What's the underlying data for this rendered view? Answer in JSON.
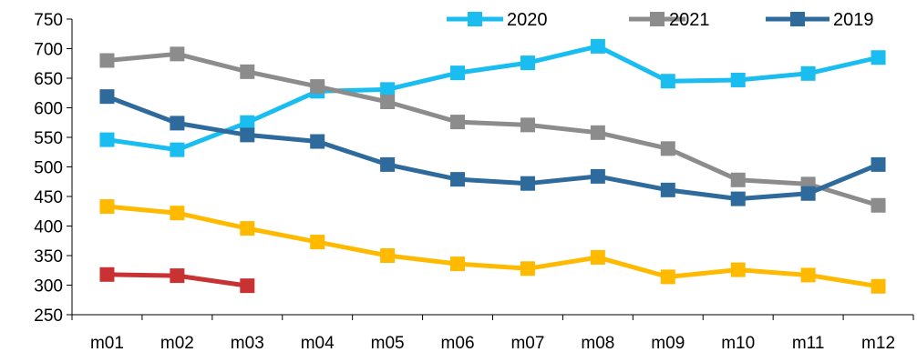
{
  "chart_data": {
    "type": "line",
    "title": "",
    "xlabel": "",
    "ylabel": "",
    "ylim": [
      250,
      750
    ],
    "yticks": [
      250,
      300,
      350,
      400,
      450,
      500,
      550,
      600,
      650,
      700,
      750
    ],
    "categories": [
      "m01",
      "m02",
      "m03",
      "m04",
      "m05",
      "m06",
      "m07",
      "m08",
      "m09",
      "m10",
      "m11",
      "m12"
    ],
    "grid": false,
    "legend": "top-right",
    "series": [
      {
        "name": "2020",
        "color": "#19BDF0",
        "values": [
          546,
          529,
          575,
          628,
          631,
          659,
          676,
          704,
          645,
          647,
          658,
          685
        ]
      },
      {
        "name": "2021",
        "color": "#8C8C8C",
        "values": [
          680,
          691,
          661,
          636,
          610,
          576,
          571,
          558,
          531,
          478,
          471,
          435
        ]
      },
      {
        "name": "2019",
        "color": "#2E6A9B",
        "values": [
          619,
          574,
          554,
          543,
          504,
          479,
          472,
          484,
          461,
          446,
          455,
          504
        ]
      },
      {
        "name": "",
        "color": "#FFBA00",
        "values": [
          433,
          422,
          396,
          373,
          350,
          336,
          328,
          347,
          314,
          326,
          317,
          298
        ]
      },
      {
        "name": "",
        "color": "#C83232",
        "values": [
          318,
          316,
          299,
          null,
          null,
          null,
          null,
          null,
          null,
          null,
          null,
          null
        ]
      }
    ]
  }
}
